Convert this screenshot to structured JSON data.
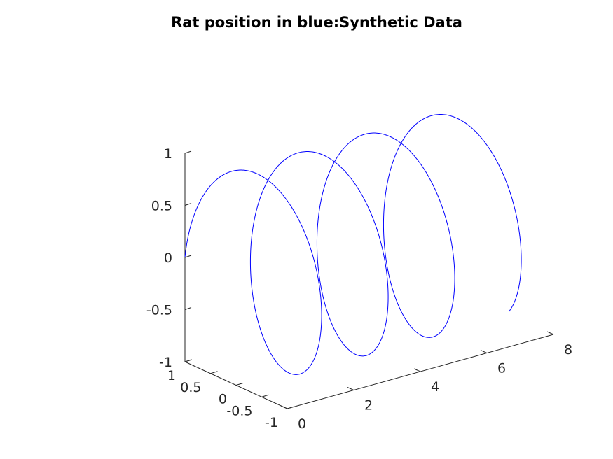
{
  "chart_data": {
    "type": "line",
    "title": "Rat position in blue:Synthetic Data",
    "xlabel": "",
    "ylabel": "",
    "zlabel": "",
    "xlim": [
      0,
      8
    ],
    "ylim": [
      -1,
      1
    ],
    "zlim": [
      -1,
      1
    ],
    "xticks": [
      0,
      2,
      4,
      6,
      8
    ],
    "yticks": [
      -1,
      -0.5,
      0,
      0.5,
      1
    ],
    "zticks": [
      -1,
      -0.5,
      0,
      0.5,
      1
    ],
    "xtick_labels": [
      "0",
      "2",
      "4",
      "6",
      "8"
    ],
    "ytick_labels": [
      "-1",
      "-0.5",
      "0",
      "0.5",
      "1"
    ],
    "ztick_labels": [
      "-1",
      "-0.5",
      "0",
      "0.5",
      "1"
    ],
    "grid": false,
    "series": [
      {
        "color": "#0000ff",
        "parametric": "helix",
        "t_range": [
          0,
          7.3
        ],
        "x": "t",
        "y": "cos(pi*t)",
        "z": "sin(pi*t)"
      }
    ]
  }
}
